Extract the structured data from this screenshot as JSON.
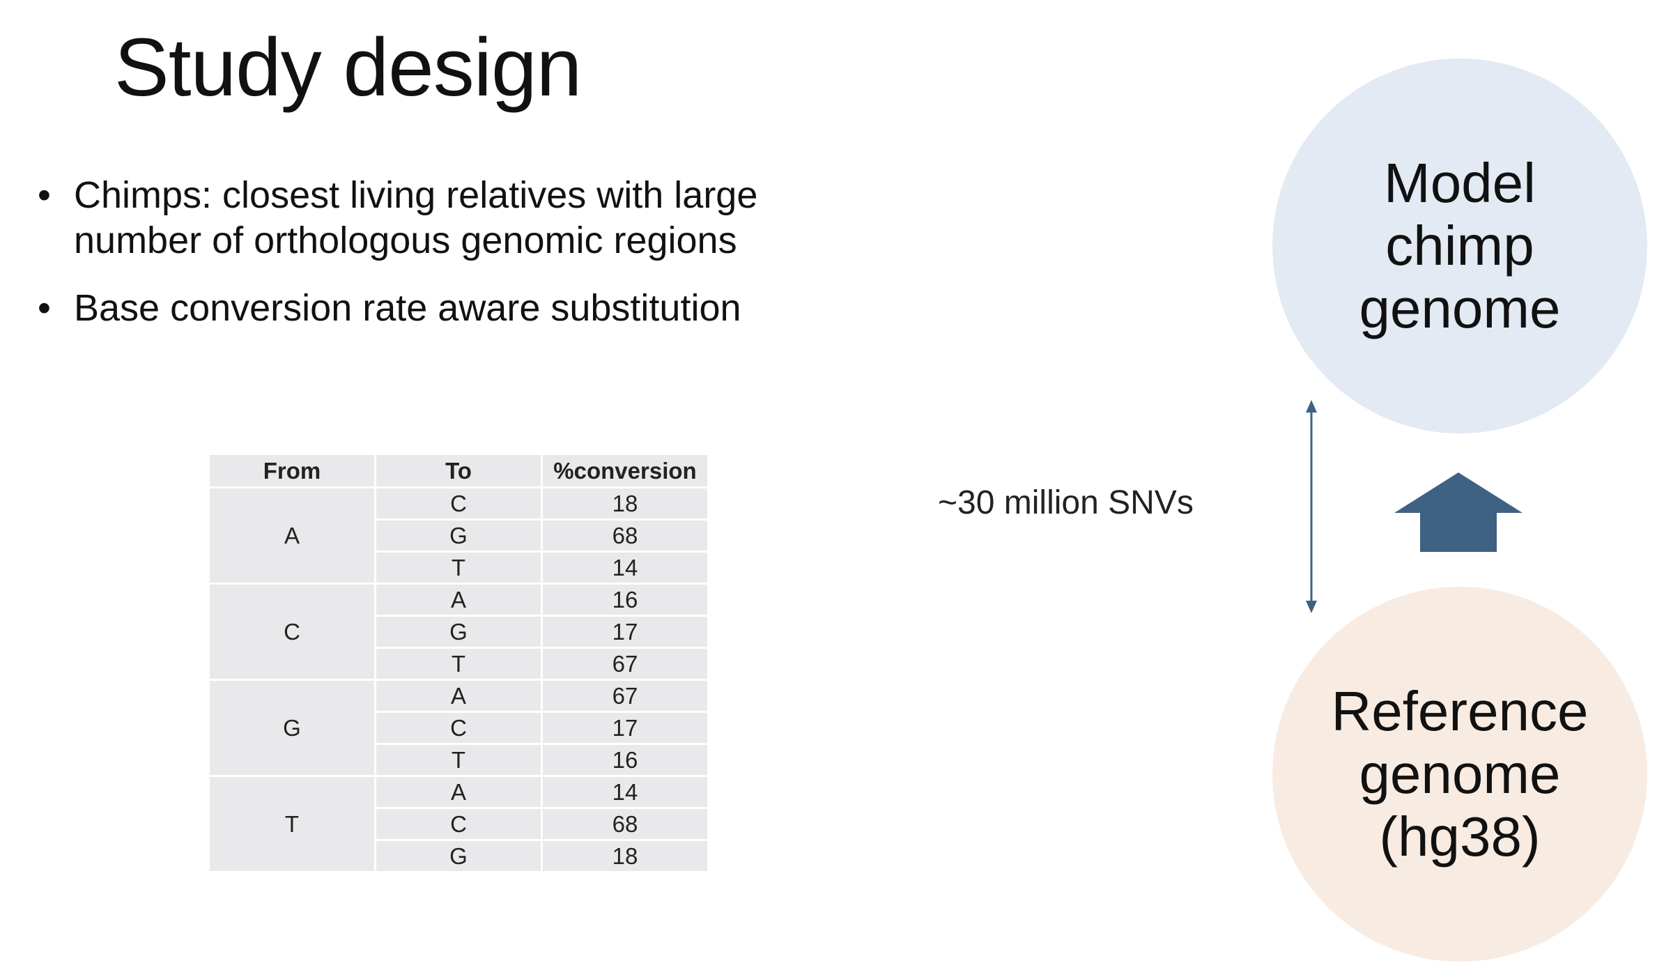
{
  "slide": {
    "title": "Study design",
    "bullets": [
      "Chimps: closest living relatives with large number of orthologous genomic regions",
      "Base conversion rate aware substitution"
    ]
  },
  "table": {
    "headers": [
      "From",
      "To",
      "%conversion"
    ],
    "groups": [
      {
        "from": "A",
        "rows": [
          {
            "to": "C",
            "pct": "18"
          },
          {
            "to": "G",
            "pct": "68"
          },
          {
            "to": "T",
            "pct": "14"
          }
        ]
      },
      {
        "from": "C",
        "rows": [
          {
            "to": "A",
            "pct": "16"
          },
          {
            "to": "G",
            "pct": "17"
          },
          {
            "to": "T",
            "pct": "67"
          }
        ]
      },
      {
        "from": "G",
        "rows": [
          {
            "to": "A",
            "pct": "67"
          },
          {
            "to": "C",
            "pct": "17"
          },
          {
            "to": "T",
            "pct": "16"
          }
        ]
      },
      {
        "from": "T",
        "rows": [
          {
            "to": "A",
            "pct": "14"
          },
          {
            "to": "C",
            "pct": "68"
          },
          {
            "to": "G",
            "pct": "18"
          }
        ]
      }
    ]
  },
  "diagram": {
    "snv_label": "~30 million SNVs",
    "model_genome": "Model\nchimp\ngenome",
    "reference_genome": "Reference\ngenome\n(hg38)",
    "colors": {
      "model_circle": "#e3eaf4",
      "reference_circle": "#f8ebe2",
      "arrow": "#3f6183"
    }
  }
}
